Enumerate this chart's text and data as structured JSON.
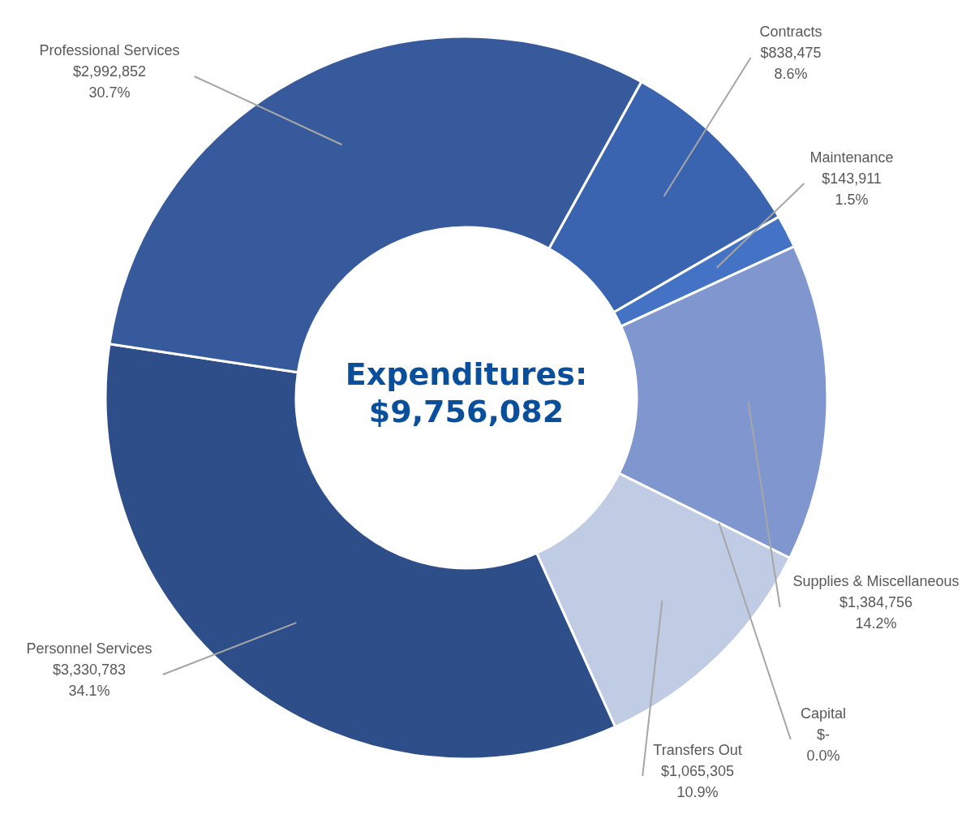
{
  "chart_data": {
    "type": "donut",
    "title": "Expenditures:",
    "subtitle": "$9,756,082",
    "categories": [
      "Contracts",
      "Maintenance",
      "Supplies & Miscellaneous",
      "Capital",
      "Transfers Out",
      "Personnel Services",
      "Professional Services"
    ],
    "values": [
      838475,
      143911,
      1384756,
      0,
      1065305,
      3330783,
      2992852
    ],
    "value_labels": [
      "$838,475\n8.6%",
      "$143,911\n1.5%",
      "$1,384,756\n14.2%",
      "$-\n0.0%",
      "$1,065,305\n10.9%",
      "$3,330,783\n34.1%",
      "$2,992,852\n30.7%"
    ],
    "colors": [
      "#3a64b0",
      "#4472c4",
      "#7f96cf",
      "#a9b9e0",
      "#c0cbe4",
      "#2e4e8a",
      "#365a9c"
    ],
    "legend": false
  }
}
